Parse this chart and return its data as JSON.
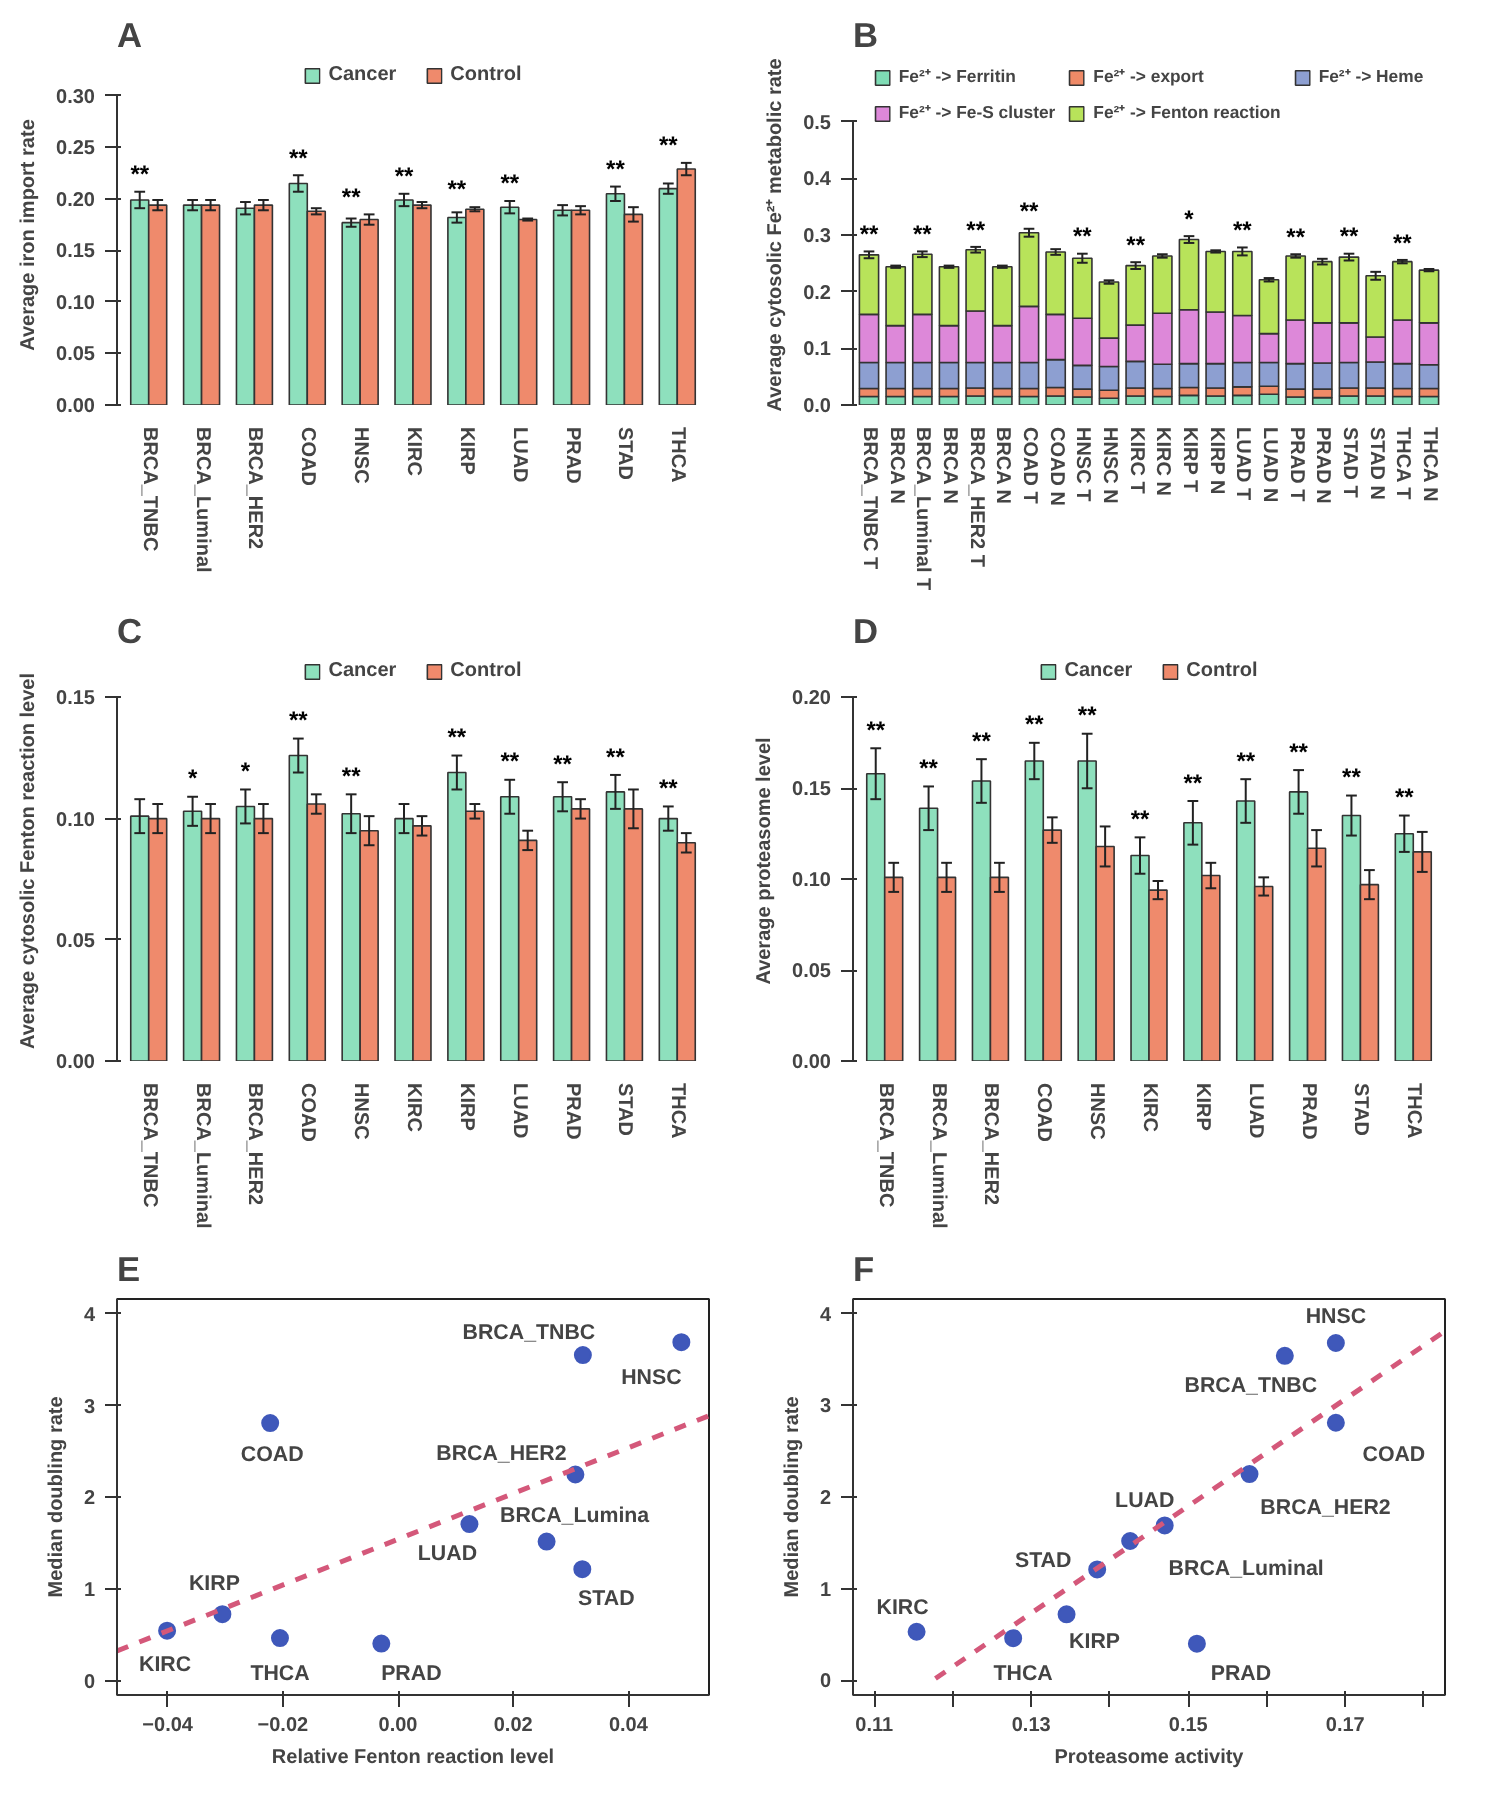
{
  "chart_data": [
    {
      "type": "bar",
      "title": "A",
      "ylabel": "Average iron import rate",
      "categories": [
        "BRCA_TNBC",
        "BRCA_Luminal",
        "BRCA_HER2",
        "COAD",
        "HNSC",
        "KIRC",
        "KIRP",
        "LUAD",
        "PRAD",
        "STAD",
        "THCA"
      ],
      "series": [
        {
          "name": "Cancer",
          "color": "#8ee0bd",
          "value_labels": [
            "**",
            null,
            null,
            "**",
            "**",
            "**",
            "**",
            "**",
            null,
            "**",
            "**"
          ],
          "values": [
            0.199,
            0.194,
            0.191,
            0.215,
            0.177,
            0.199,
            0.182,
            0.192,
            0.189,
            0.205,
            0.21
          ],
          "errors": [
            0.008,
            0.005,
            0.006,
            0.008,
            0.004,
            0.006,
            0.005,
            0.006,
            0.005,
            0.007,
            0.005
          ]
        },
        {
          "name": "Control",
          "color": "#ef8a6c",
          "values": [
            0.194,
            0.194,
            0.194,
            0.188,
            0.18,
            0.194,
            0.19,
            0.18,
            0.189,
            0.185,
            0.229
          ],
          "errors": [
            0.005,
            0.005,
            0.005,
            0.003,
            0.005,
            0.003,
            0.002,
            0.001,
            0.004,
            0.007,
            0.006
          ]
        }
      ],
      "ylim": [
        0,
        0.3
      ],
      "yticks": [
        {
          "value": 0,
          "label": "0.00"
        },
        {
          "value": 0.05,
          "label": "0.05"
        },
        {
          "value": 0.1,
          "label": "0.10"
        },
        {
          "value": 0.15,
          "label": "0.15"
        },
        {
          "value": 0.2,
          "label": "0.20"
        },
        {
          "value": 0.25,
          "label": "0.25"
        },
        {
          "value": 0.3,
          "label": "0.30"
        }
      ],
      "legend": "top"
    },
    {
      "type": "bar",
      "stacked": true,
      "title": "B",
      "ylabel": "Average cytosolic Fe²⁺ metabolic rate",
      "categories": [
        "BRCA_TNBC T",
        "BRCA N",
        "BRCA_Luminal T",
        "BRCA N",
        "BRCA_HER2 T",
        "BRCA N",
        "COAD T",
        "COAD N",
        "HNSC T",
        "HNSC N",
        "KIRC T",
        "KIRC N",
        "KIRP T",
        "KIRP N",
        "LUAD T",
        "LUAD N",
        "PRAD T",
        "PRAD N",
        "STAD T",
        "STAD N",
        "THCA T",
        "THCA N"
      ],
      "series": [
        {
          "name": "Fe²⁺ -> Ferritin",
          "color": "#7fdcb5",
          "values": [
            0.015,
            0.015,
            0.015,
            0.015,
            0.016,
            0.015,
            0.015,
            0.016,
            0.014,
            0.012,
            0.016,
            0.015,
            0.017,
            0.016,
            0.017,
            0.019,
            0.014,
            0.013,
            0.016,
            0.016,
            0.015,
            0.015
          ]
        },
        {
          "name": "Fe²⁺ -> export",
          "color": "#ef8a67",
          "values": [
            0.014,
            0.014,
            0.014,
            0.014,
            0.014,
            0.014,
            0.014,
            0.015,
            0.014,
            0.014,
            0.014,
            0.014,
            0.014,
            0.014,
            0.015,
            0.014,
            0.014,
            0.015,
            0.014,
            0.014,
            0.014,
            0.014
          ]
        },
        {
          "name": "Fe²⁺ -> Heme",
          "color": "#8d9fd1",
          "values": [
            0.046,
            0.046,
            0.046,
            0.046,
            0.045,
            0.046,
            0.046,
            0.049,
            0.042,
            0.042,
            0.047,
            0.043,
            0.042,
            0.043,
            0.043,
            0.042,
            0.045,
            0.046,
            0.045,
            0.046,
            0.044,
            0.042
          ]
        },
        {
          "name": "Fe²⁺ -> Fe-S cluster",
          "color": "#dd88d9",
          "values": [
            0.085,
            0.065,
            0.085,
            0.065,
            0.091,
            0.065,
            0.099,
            0.08,
            0.083,
            0.05,
            0.064,
            0.09,
            0.095,
            0.091,
            0.083,
            0.051,
            0.077,
            0.071,
            0.07,
            0.044,
            0.077,
            0.074
          ]
        },
        {
          "name": "Fe²⁺ -> Fenton reaction",
          "color": "#b8e35a",
          "value_labels": [
            "**",
            null,
            "**",
            null,
            "**",
            null,
            "**",
            null,
            "**",
            null,
            "**",
            null,
            "*",
            null,
            "**",
            null,
            "**",
            null,
            "**",
            null,
            "**",
            null
          ],
          "values": [
            0.105,
            0.104,
            0.106,
            0.104,
            0.108,
            0.104,
            0.13,
            0.11,
            0.106,
            0.099,
            0.105,
            0.101,
            0.124,
            0.107,
            0.113,
            0.095,
            0.113,
            0.108,
            0.116,
            0.108,
            0.103,
            0.093
          ],
          "errors": [
            0.006,
            0.002,
            0.005,
            0.002,
            0.005,
            0.002,
            0.007,
            0.005,
            0.008,
            0.003,
            0.006,
            0.003,
            0.006,
            0.002,
            0.007,
            0.003,
            0.003,
            0.005,
            0.006,
            0.007,
            0.003,
            0.002
          ]
        }
      ],
      "ylim": [
        0,
        0.5
      ],
      "yticks": [
        {
          "value": 0,
          "label": "0.0"
        },
        {
          "value": 0.1,
          "label": "0.1"
        },
        {
          "value": 0.2,
          "label": "0.2"
        },
        {
          "value": 0.3,
          "label": "0.3"
        },
        {
          "value": 0.4,
          "label": "0.4"
        },
        {
          "value": 0.5,
          "label": "0.5"
        }
      ],
      "legend": "top"
    },
    {
      "type": "bar",
      "title": "C",
      "ylabel": "Average cytosolic Fenton reaction level",
      "categories": [
        "BRCA_TNBC",
        "BRCA_Luminal",
        "BRCA_HER2",
        "COAD",
        "HNSC",
        "KIRC",
        "KIRP",
        "LUAD",
        "PRAD",
        "STAD",
        "THCA"
      ],
      "series": [
        {
          "name": "Cancer",
          "color": "#8ee0bd",
          "value_labels": [
            null,
            "*",
            "*",
            "**",
            "**",
            null,
            "**",
            "**",
            "**",
            "**",
            "**"
          ],
          "values": [
            0.101,
            0.103,
            0.105,
            0.126,
            0.102,
            0.1,
            0.119,
            0.109,
            0.109,
            0.111,
            0.1
          ],
          "errors": [
            0.007,
            0.006,
            0.007,
            0.007,
            0.008,
            0.006,
            0.007,
            0.007,
            0.006,
            0.007,
            0.005
          ]
        },
        {
          "name": "Control",
          "color": "#ef8a6c",
          "values": [
            0.1,
            0.1,
            0.1,
            0.106,
            0.095,
            0.097,
            0.103,
            0.091,
            0.104,
            0.104,
            0.09
          ],
          "errors": [
            0.006,
            0.006,
            0.006,
            0.004,
            0.006,
            0.004,
            0.003,
            0.004,
            0.004,
            0.008,
            0.004
          ]
        }
      ],
      "ylim": [
        0,
        0.15
      ],
      "yticks": [
        {
          "value": 0,
          "label": "0.00"
        },
        {
          "value": 0.05,
          "label": "0.05"
        },
        {
          "value": 0.1,
          "label": "0.10"
        },
        {
          "value": 0.15,
          "label": "0.15"
        }
      ],
      "legend": "top"
    },
    {
      "type": "bar",
      "title": "D",
      "ylabel": "Average proteasome level",
      "categories": [
        "BRCA_TNBC",
        "BRCA_Luminal",
        "BRCA_HER2",
        "COAD",
        "HNSC",
        "KIRC",
        "KIRP",
        "LUAD",
        "PRAD",
        "STAD",
        "THCA"
      ],
      "series": [
        {
          "name": "Cancer",
          "color": "#8ee0bd",
          "value_labels": [
            "**",
            "**",
            "**",
            "**",
            "**",
            "**",
            "**",
            "**",
            "**",
            "**",
            "**"
          ],
          "values": [
            0.158,
            0.139,
            0.154,
            0.165,
            0.165,
            0.113,
            0.131,
            0.143,
            0.148,
            0.135,
            0.125
          ],
          "errors": [
            0.014,
            0.012,
            0.012,
            0.01,
            0.015,
            0.01,
            0.012,
            0.012,
            0.012,
            0.011,
            0.01
          ]
        },
        {
          "name": "Control",
          "color": "#ef8a6c",
          "values": [
            0.101,
            0.101,
            0.101,
            0.127,
            0.118,
            0.094,
            0.102,
            0.096,
            0.117,
            0.097,
            0.115
          ],
          "errors": [
            0.008,
            0.008,
            0.008,
            0.007,
            0.011,
            0.005,
            0.007,
            0.005,
            0.01,
            0.008,
            0.011
          ]
        }
      ],
      "ylim": [
        0,
        0.2
      ],
      "yticks": [
        {
          "value": 0,
          "label": "0.00"
        },
        {
          "value": 0.05,
          "label": "0.05"
        },
        {
          "value": 0.1,
          "label": "0.10"
        },
        {
          "value": 0.15,
          "label": "0.15"
        },
        {
          "value": 0.2,
          "label": "0.20"
        }
      ],
      "legend": "top"
    },
    {
      "type": "scatter",
      "title": "E",
      "xlabel": "Relative Fenton reaction level",
      "ylabel": "Median doubling rate",
      "series": [
        {
          "type": "scatter",
          "marker": "circle",
          "color": "#3f58ba",
          "value_labels": [
            "BRCA_TNBC",
            "HNSC",
            "COAD",
            "BRCA_HER2",
            "LUAD",
            "BRCA_Lumina",
            "STAD",
            "KIRP",
            "KIRC",
            "THCA",
            "PRAD"
          ],
          "x": [
            0.0321,
            0.0492,
            -0.0222,
            0.0308,
            0.0124,
            0.0258,
            0.032,
            -0.0305,
            -0.0401,
            -0.0205,
            -0.0029
          ],
          "values": [
            3.55,
            3.69,
            2.81,
            2.25,
            1.71,
            1.52,
            1.22,
            0.73,
            0.55,
            0.47,
            0.41
          ]
        },
        {
          "type": "line",
          "color": "#d4587a",
          "line_style": "dashed",
          "x": [
            -0.0488,
            0.054
          ],
          "values": [
            0.33,
            2.89
          ]
        }
      ],
      "xlim": [
        -0.0488,
        0.054
      ],
      "ylim": [
        -0.15,
        4.16
      ],
      "xticks": [
        {
          "value": -0.04,
          "label": "−0.04"
        },
        {
          "value": -0.02,
          "label": "−0.02"
        },
        {
          "value": 0,
          "label": "0.00"
        },
        {
          "value": 0.02,
          "label": "0.02"
        },
        {
          "value": 0.04,
          "label": "0.04"
        }
      ],
      "yticks": [
        0,
        1,
        2,
        3,
        4
      ]
    },
    {
      "type": "scatter",
      "title": "F",
      "xlabel": "Proteasome activity",
      "ylabel": "Median doubling rate",
      "series": [
        {
          "type": "scatter",
          "marker": "circle",
          "color": "#3f58ba",
          "value_labels": [
            "HNSC",
            "BRCA_TNBC",
            "COAD",
            "BRCA_HER2",
            "LUAD",
            "BRCA_Luminal",
            "STAD",
            "KIRP",
            "KIRC",
            "THCA",
            "PRAD"
          ],
          "x": [
            0.1688,
            0.1623,
            0.1688,
            0.1578,
            0.147,
            0.1426,
            0.1384,
            0.1345,
            0.1154,
            0.1277,
            0.1511
          ],
          "values": [
            3.68,
            3.54,
            2.81,
            2.25,
            1.69,
            1.52,
            1.21,
            0.72,
            0.53,
            0.46,
            0.4
          ]
        },
        {
          "type": "line",
          "color": "#d4587a",
          "line_style": "dashed",
          "x": [
            0.1178,
            0.1827
          ],
          "values": [
            0.02,
            3.81
          ]
        }
      ],
      "xlim": [
        0.1073,
        0.1827
      ],
      "ylim": [
        -0.16,
        4.16
      ],
      "xticks": [
        0.11,
        {
          "value": 0.12,
          "label": null
        },
        0.13,
        {
          "value": 0.14,
          "label": null
        },
        0.15,
        {
          "value": 0.16,
          "label": null
        },
        0.17,
        {
          "value": 0.18,
          "label": null
        }
      ],
      "yticks": [
        0,
        1,
        2,
        3,
        4
      ]
    }
  ]
}
